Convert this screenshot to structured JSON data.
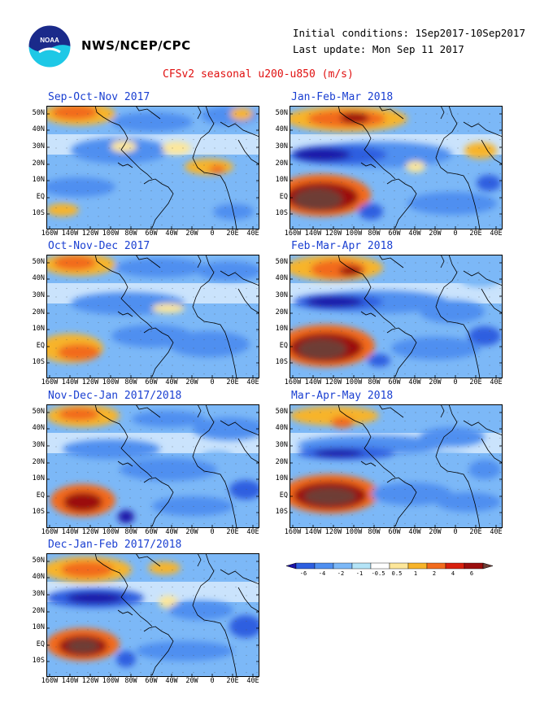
{
  "header": {
    "org": "NWS/NCEP/CPC",
    "initial_conditions": "Initial conditions: 1Sep2017-10Sep2017",
    "last_update": "Last update: Mon Sep 11 2017",
    "title": "CFSv2 seasonal u200-u850 (m/s)",
    "logo_text": "NOAA"
  },
  "axes": {
    "lat_labels": [
      "50N",
      "40N",
      "30N",
      "20N",
      "10N",
      "EQ",
      "10S"
    ],
    "lon_labels": [
      "160W",
      "140W",
      "120W",
      "100W",
      "80W",
      "60W",
      "40W",
      "20W",
      "0",
      "20E",
      "40E"
    ]
  },
  "panels": [
    {
      "title": "Sep-Oct-Nov 2017"
    },
    {
      "title": "Oct-Nov-Dec 2017"
    },
    {
      "title": "Nov-Dec-Jan 2017/2018"
    },
    {
      "title": "Dec-Jan-Feb 2017/2018"
    },
    {
      "title": "Jan-Feb-Mar 2018"
    },
    {
      "title": "Feb-Mar-Apr 2018"
    },
    {
      "title": "Mar-Apr-May 2018"
    }
  ],
  "colorbar": {
    "ticks": [
      "-6",
      "-4",
      "-2",
      "-1",
      "-0.5",
      "0.5",
      "1",
      "2",
      "4",
      "6"
    ],
    "colors": [
      "#1c13a8",
      "#2d5fe0",
      "#4f8ff0",
      "#7cb8f7",
      "#b4e4f7",
      "#ffffff",
      "#fde79a",
      "#f7b42a",
      "#f26b1d",
      "#d8200e",
      "#9b0e0e",
      "#6e3e36"
    ]
  }
}
